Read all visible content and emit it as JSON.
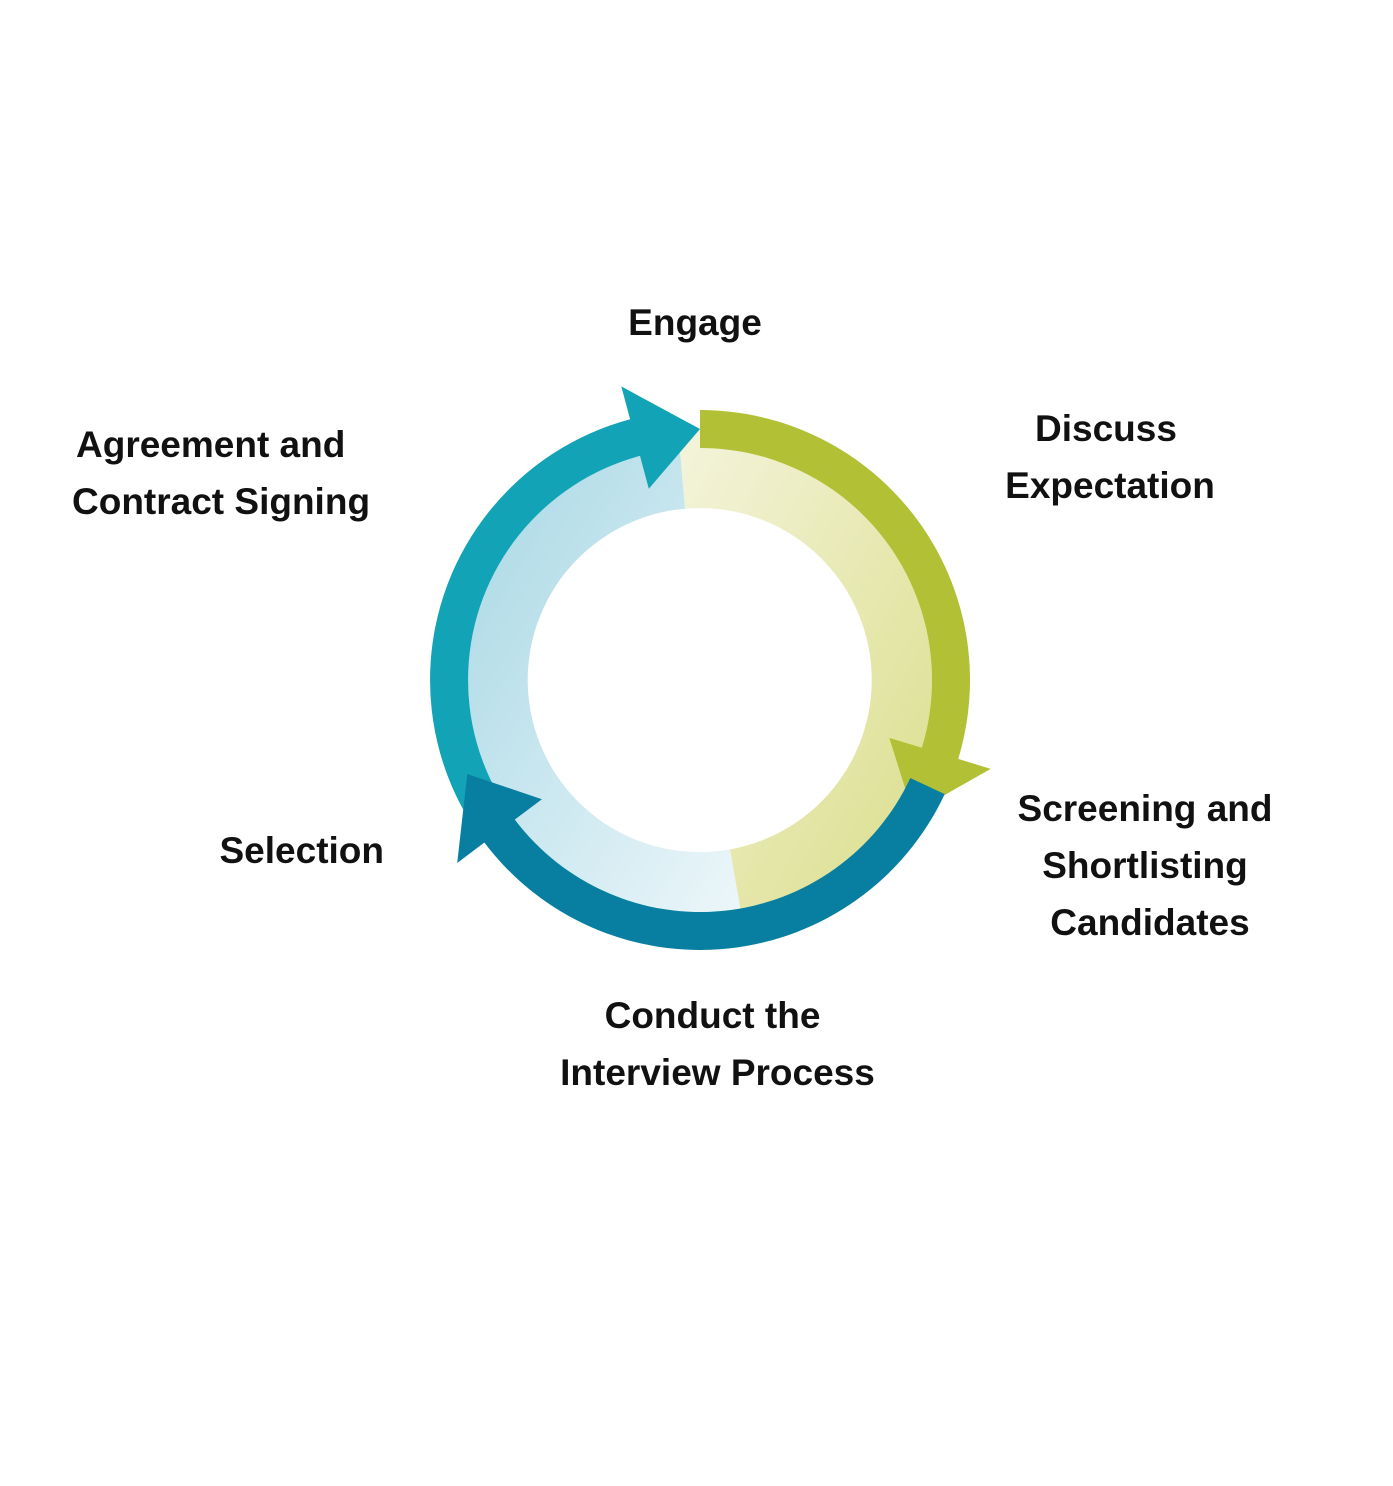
{
  "diagram": {
    "colors": {
      "teal": "#12a4b6",
      "green": "#b2c036",
      "blue": "#087fa1",
      "light_green": "#e2e4a0",
      "light_blue": "#a9d9e6"
    },
    "steps": [
      {
        "id": "engage",
        "lines": [
          "Engage"
        ]
      },
      {
        "id": "discuss",
        "lines": [
          "Discuss",
          "Expectation"
        ]
      },
      {
        "id": "screening",
        "lines": [
          "Screening and",
          "Shortlisting",
          "Candidates"
        ]
      },
      {
        "id": "interview",
        "lines": [
          "Conduct the",
          "Interview Process"
        ]
      },
      {
        "id": "selection",
        "lines": [
          "Selection"
        ]
      },
      {
        "id": "agreement",
        "lines": [
          "Agreement and",
          "Contract Signing"
        ]
      }
    ]
  }
}
